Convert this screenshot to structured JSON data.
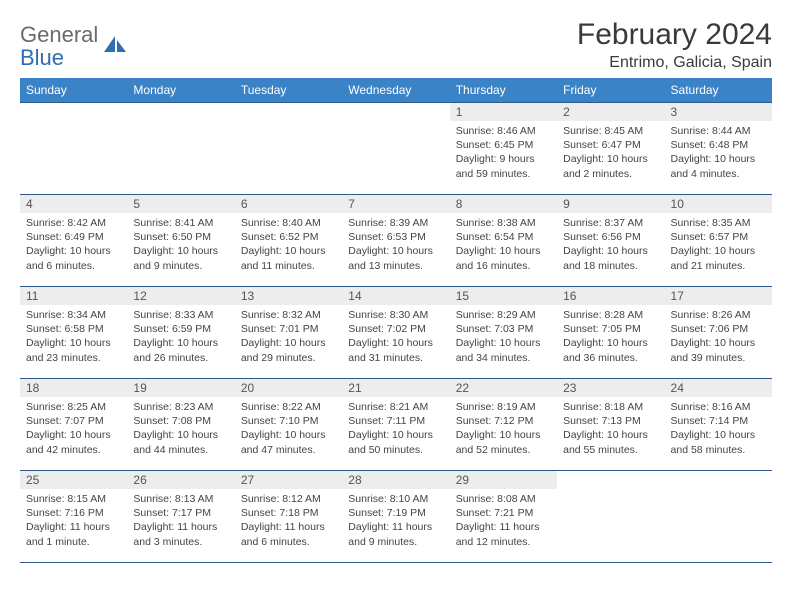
{
  "logo": {
    "textGray": "General",
    "textBlue": "Blue"
  },
  "title": "February 2024",
  "location": "Entrimo, Galicia, Spain",
  "colors": {
    "headerBg": "#3b83c7",
    "headerText": "#ffffff",
    "dayNumBg": "#ededed",
    "cellBorder": "#2d5a8a"
  },
  "dayHeaders": [
    "Sunday",
    "Monday",
    "Tuesday",
    "Wednesday",
    "Thursday",
    "Friday",
    "Saturday"
  ],
  "weeks": [
    [
      null,
      null,
      null,
      null,
      {
        "n": "1",
        "sr": "8:46 AM",
        "ss": "6:45 PM",
        "dl": "9 hours and 59 minutes."
      },
      {
        "n": "2",
        "sr": "8:45 AM",
        "ss": "6:47 PM",
        "dl": "10 hours and 2 minutes."
      },
      {
        "n": "3",
        "sr": "8:44 AM",
        "ss": "6:48 PM",
        "dl": "10 hours and 4 minutes."
      }
    ],
    [
      {
        "n": "4",
        "sr": "8:42 AM",
        "ss": "6:49 PM",
        "dl": "10 hours and 6 minutes."
      },
      {
        "n": "5",
        "sr": "8:41 AM",
        "ss": "6:50 PM",
        "dl": "10 hours and 9 minutes."
      },
      {
        "n": "6",
        "sr": "8:40 AM",
        "ss": "6:52 PM",
        "dl": "10 hours and 11 minutes."
      },
      {
        "n": "7",
        "sr": "8:39 AM",
        "ss": "6:53 PM",
        "dl": "10 hours and 13 minutes."
      },
      {
        "n": "8",
        "sr": "8:38 AM",
        "ss": "6:54 PM",
        "dl": "10 hours and 16 minutes."
      },
      {
        "n": "9",
        "sr": "8:37 AM",
        "ss": "6:56 PM",
        "dl": "10 hours and 18 minutes."
      },
      {
        "n": "10",
        "sr": "8:35 AM",
        "ss": "6:57 PM",
        "dl": "10 hours and 21 minutes."
      }
    ],
    [
      {
        "n": "11",
        "sr": "8:34 AM",
        "ss": "6:58 PM",
        "dl": "10 hours and 23 minutes."
      },
      {
        "n": "12",
        "sr": "8:33 AM",
        "ss": "6:59 PM",
        "dl": "10 hours and 26 minutes."
      },
      {
        "n": "13",
        "sr": "8:32 AM",
        "ss": "7:01 PM",
        "dl": "10 hours and 29 minutes."
      },
      {
        "n": "14",
        "sr": "8:30 AM",
        "ss": "7:02 PM",
        "dl": "10 hours and 31 minutes."
      },
      {
        "n": "15",
        "sr": "8:29 AM",
        "ss": "7:03 PM",
        "dl": "10 hours and 34 minutes."
      },
      {
        "n": "16",
        "sr": "8:28 AM",
        "ss": "7:05 PM",
        "dl": "10 hours and 36 minutes."
      },
      {
        "n": "17",
        "sr": "8:26 AM",
        "ss": "7:06 PM",
        "dl": "10 hours and 39 minutes."
      }
    ],
    [
      {
        "n": "18",
        "sr": "8:25 AM",
        "ss": "7:07 PM",
        "dl": "10 hours and 42 minutes."
      },
      {
        "n": "19",
        "sr": "8:23 AM",
        "ss": "7:08 PM",
        "dl": "10 hours and 44 minutes."
      },
      {
        "n": "20",
        "sr": "8:22 AM",
        "ss": "7:10 PM",
        "dl": "10 hours and 47 minutes."
      },
      {
        "n": "21",
        "sr": "8:21 AM",
        "ss": "7:11 PM",
        "dl": "10 hours and 50 minutes."
      },
      {
        "n": "22",
        "sr": "8:19 AM",
        "ss": "7:12 PM",
        "dl": "10 hours and 52 minutes."
      },
      {
        "n": "23",
        "sr": "8:18 AM",
        "ss": "7:13 PM",
        "dl": "10 hours and 55 minutes."
      },
      {
        "n": "24",
        "sr": "8:16 AM",
        "ss": "7:14 PM",
        "dl": "10 hours and 58 minutes."
      }
    ],
    [
      {
        "n": "25",
        "sr": "8:15 AM",
        "ss": "7:16 PM",
        "dl": "11 hours and 1 minute."
      },
      {
        "n": "26",
        "sr": "8:13 AM",
        "ss": "7:17 PM",
        "dl": "11 hours and 3 minutes."
      },
      {
        "n": "27",
        "sr": "8:12 AM",
        "ss": "7:18 PM",
        "dl": "11 hours and 6 minutes."
      },
      {
        "n": "28",
        "sr": "8:10 AM",
        "ss": "7:19 PM",
        "dl": "11 hours and 9 minutes."
      },
      {
        "n": "29",
        "sr": "8:08 AM",
        "ss": "7:21 PM",
        "dl": "11 hours and 12 minutes."
      },
      null,
      null
    ]
  ],
  "labels": {
    "sunrise": "Sunrise:",
    "sunset": "Sunset:",
    "daylight": "Daylight:"
  }
}
